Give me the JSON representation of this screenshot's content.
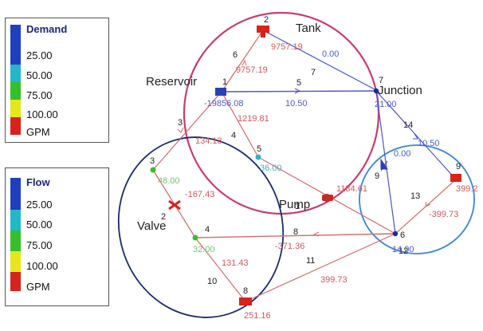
{
  "legends": [
    {
      "title": "Demand",
      "labels": [
        "25.00",
        "50.00",
        "75.00",
        "100.00",
        "GPM"
      ],
      "colors": [
        "#1f3fbf",
        "#22b8c8",
        "#35c02a",
        "#e6e61a",
        "#d8221c"
      ]
    },
    {
      "title": "Flow",
      "labels": [
        "25.00",
        "50.00",
        "75.00",
        "100.00",
        "GPM"
      ],
      "colors": [
        "#1f3fbf",
        "#22b8c8",
        "#35c02a",
        "#e6e61a",
        "#d8221c"
      ]
    }
  ],
  "zone_labels": {
    "tank": "Tank",
    "reservoir": "Reservoir",
    "junction": "Junction",
    "pump": "Pump",
    "valve": "Valve"
  },
  "node_ids": [
    "1",
    "2",
    "3",
    "4",
    "5",
    "6",
    "7",
    "8",
    "9"
  ],
  "link_ids": [
    "1",
    "2",
    "3",
    "4",
    "5",
    "6",
    "7",
    "8",
    "9",
    "10",
    "11",
    "12",
    "13",
    "14"
  ],
  "values": {
    "tank_head": "9757.19",
    "link6": "9757.19",
    "link7": "0.00",
    "reservoir_flow": "-19856.08",
    "link5": "10.50",
    "junction_node": "21.00",
    "link4": "1219.81",
    "link3": "134.13",
    "link14": "10.50",
    "link14_b": "0.00",
    "node9": "399.2",
    "node3": "48.00",
    "node5": "36.00",
    "pump_flow": "1184.61",
    "valve_flow": "-167.43",
    "link13": "-399.73",
    "node4": "32.00",
    "link8": "-371.36",
    "node6": "14.00",
    "link10": "131.43",
    "link11": "399.73",
    "node8": "251.16"
  },
  "colors": {
    "magenta_circle": "#cc3a6e",
    "navy_circle": "#1a2b6b",
    "cyan_circle": "#3a86d8",
    "pipe_red": "#d46a6a",
    "pipe_blue": "#4b56c8",
    "value_red": "#d6575c",
    "value_blue": "#4c5ad0",
    "value_green": "#7bc06a"
  }
}
